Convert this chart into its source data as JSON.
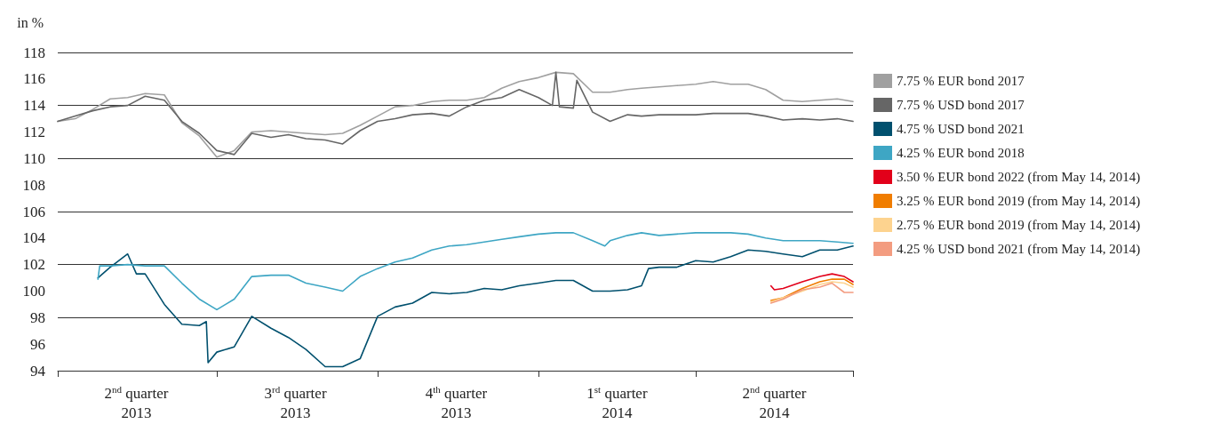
{
  "chart_data": {
    "type": "line",
    "ylabel": "in %",
    "xlim": [
      "2013-04-01",
      "2014-06-30"
    ],
    "xticks": [
      {
        "value": "2013-04-01",
        "label": null
      },
      {
        "value": "2013-05-16",
        "label": "2$^{nd}$ quarter\n2013"
      },
      {
        "value": "2013-07-01",
        "label": null
      },
      {
        "value": "2013-08-15",
        "label": "3$^{rd}$ quarter\n2013"
      },
      {
        "value": "2013-10-01",
        "label": null
      },
      {
        "value": "2013-11-15",
        "label": "4$^{th}$ quarter\n2013"
      },
      {
        "value": "2014-01-01",
        "label": null
      },
      {
        "value": "2014-02-15",
        "label": "1$^{st}$ quarter\n2014"
      },
      {
        "value": "2014-04-01",
        "label": null
      },
      {
        "value": "2014-05-16",
        "label": "2$^{nd}$ quarter\n2014"
      },
      {
        "value": "2014-06-30",
        "label": null
      }
    ],
    "ylim": [
      94,
      118
    ],
    "yticks": [
      94,
      96,
      98,
      100,
      102,
      104,
      106,
      108,
      110,
      112,
      114,
      116,
      118
    ],
    "grid": "y",
    "legend": "right",
    "series": [
      {
        "name": "7.75 % EUR bond 2017",
        "color": "#a0a0a0",
        "x": [
          "2013-04-01",
          "2013-04-11",
          "2013-04-21",
          "2013-05-01",
          "2013-05-11",
          "2013-05-21",
          "2013-06-01",
          "2013-06-11",
          "2013-06-21",
          "2013-07-01",
          "2013-07-11",
          "2013-07-21",
          "2013-08-01",
          "2013-08-11",
          "2013-08-21",
          "2013-09-01",
          "2013-09-11",
          "2013-09-21",
          "2013-10-01",
          "2013-10-11",
          "2013-10-21",
          "2013-11-01",
          "2013-11-11",
          "2013-11-21",
          "2013-12-01",
          "2013-12-11",
          "2013-12-21",
          "2014-01-01",
          "2014-01-11",
          "2014-01-21",
          "2014-02-01",
          "2014-02-11",
          "2014-02-21",
          "2014-03-01",
          "2014-03-11",
          "2014-03-21",
          "2014-04-01",
          "2014-04-11",
          "2014-04-21",
          "2014-05-01",
          "2014-05-11",
          "2014-05-21",
          "2014-06-01",
          "2014-06-11",
          "2014-06-21",
          "2014-06-30"
        ],
        "values": [
          112.8,
          113.0,
          113.7,
          114.5,
          114.6,
          114.9,
          114.8,
          112.7,
          111.7,
          110.1,
          110.6,
          112.0,
          112.1,
          112.0,
          111.9,
          111.8,
          111.9,
          112.5,
          113.2,
          113.9,
          114.0,
          114.3,
          114.4,
          114.4,
          114.6,
          115.3,
          115.8,
          116.1,
          116.5,
          116.4,
          115.0,
          115.0,
          115.2,
          115.3,
          115.4,
          115.5,
          115.6,
          115.8,
          115.6,
          115.6,
          115.2,
          114.4,
          114.3,
          114.4,
          114.5,
          114.3
        ]
      },
      {
        "name": "7.75 % USD bond 2017",
        "color": "#666666",
        "x": [
          "2013-04-01",
          "2013-04-11",
          "2013-04-21",
          "2013-05-01",
          "2013-05-11",
          "2013-05-21",
          "2013-06-01",
          "2013-06-11",
          "2013-06-21",
          "2013-07-01",
          "2013-07-11",
          "2013-07-21",
          "2013-08-01",
          "2013-08-11",
          "2013-08-21",
          "2013-09-01",
          "2013-09-11",
          "2013-09-21",
          "2013-10-01",
          "2013-10-11",
          "2013-10-21",
          "2013-11-01",
          "2013-11-11",
          "2013-11-21",
          "2013-12-01",
          "2013-12-11",
          "2013-12-21",
          "2014-01-01",
          "2014-01-09",
          "2014-01-11",
          "2014-01-13",
          "2014-01-21",
          "2014-01-23",
          "2014-02-01",
          "2014-02-11",
          "2014-02-21",
          "2014-03-01",
          "2014-03-11",
          "2014-03-21",
          "2014-04-01",
          "2014-04-11",
          "2014-04-21",
          "2014-05-01",
          "2014-05-11",
          "2014-05-21",
          "2014-06-01",
          "2014-06-11",
          "2014-06-21",
          "2014-06-30"
        ],
        "values": [
          112.8,
          113.2,
          113.6,
          113.9,
          114.0,
          114.7,
          114.4,
          112.8,
          111.9,
          110.6,
          110.3,
          111.9,
          111.6,
          111.8,
          111.5,
          111.4,
          111.1,
          112.1,
          112.8,
          113.0,
          113.3,
          113.4,
          113.2,
          113.9,
          114.4,
          114.6,
          115.2,
          114.6,
          114.0,
          116.5,
          113.9,
          113.8,
          115.9,
          113.5,
          112.8,
          113.3,
          113.2,
          113.3,
          113.3,
          113.3,
          113.4,
          113.4,
          113.4,
          113.2,
          112.9,
          113.0,
          112.9,
          113.0,
          112.8
        ]
      },
      {
        "name": "4.75 % USD bond 2021",
        "color": "#00506e",
        "x": [
          "2013-04-24",
          "2013-05-01",
          "2013-05-11",
          "2013-05-16",
          "2013-05-21",
          "2013-06-01",
          "2013-06-11",
          "2013-06-21",
          "2013-06-25",
          "2013-06-26",
          "2013-07-01",
          "2013-07-11",
          "2013-07-21",
          "2013-08-01",
          "2013-08-11",
          "2013-08-21",
          "2013-09-01",
          "2013-09-11",
          "2013-09-21",
          "2013-10-01",
          "2013-10-11",
          "2013-10-21",
          "2013-11-01",
          "2013-11-11",
          "2013-11-21",
          "2013-12-01",
          "2013-12-11",
          "2013-12-21",
          "2014-01-01",
          "2014-01-11",
          "2014-01-21",
          "2014-02-01",
          "2014-02-11",
          "2014-02-21",
          "2014-03-01",
          "2014-03-05",
          "2014-03-11",
          "2014-03-21",
          "2014-04-01",
          "2014-04-11",
          "2014-04-21",
          "2014-05-01",
          "2014-05-11",
          "2014-05-21",
          "2014-06-01",
          "2014-06-11",
          "2014-06-21",
          "2014-06-30"
        ],
        "values": [
          101.0,
          101.8,
          102.8,
          101.3,
          101.3,
          99.0,
          97.5,
          97.4,
          97.7,
          94.6,
          95.4,
          95.8,
          98.1,
          97.2,
          96.5,
          95.6,
          94.3,
          94.3,
          94.9,
          98.1,
          98.8,
          99.1,
          99.9,
          99.8,
          99.9,
          100.2,
          100.1,
          100.4,
          100.6,
          100.8,
          100.8,
          100.0,
          100.0,
          100.1,
          100.4,
          101.7,
          101.8,
          101.8,
          102.3,
          102.2,
          102.6,
          103.1,
          103.0,
          102.8,
          102.6,
          103.1,
          103.1,
          103.4
        ]
      },
      {
        "name": "4.25 % EUR bond 2018",
        "color": "#3ea6c4",
        "x": [
          "2013-04-24",
          "2013-04-25",
          "2013-05-01",
          "2013-05-11",
          "2013-05-21",
          "2013-06-01",
          "2013-06-11",
          "2013-06-21",
          "2013-07-01",
          "2013-07-11",
          "2013-07-21",
          "2013-08-01",
          "2013-08-11",
          "2013-08-21",
          "2013-09-01",
          "2013-09-11",
          "2013-09-21",
          "2013-10-01",
          "2013-10-11",
          "2013-10-21",
          "2013-11-01",
          "2013-11-11",
          "2013-11-21",
          "2013-12-01",
          "2013-12-11",
          "2013-12-21",
          "2014-01-01",
          "2014-01-11",
          "2014-01-21",
          "2014-02-01",
          "2014-02-08",
          "2014-02-11",
          "2014-02-21",
          "2014-03-01",
          "2014-03-11",
          "2014-03-21",
          "2014-04-01",
          "2014-04-11",
          "2014-04-21",
          "2014-05-01",
          "2014-05-11",
          "2014-05-21",
          "2014-06-01",
          "2014-06-11",
          "2014-06-21",
          "2014-06-30"
        ],
        "values": [
          100.9,
          101.9,
          101.9,
          102.0,
          101.9,
          101.9,
          100.6,
          99.4,
          98.6,
          99.4,
          101.1,
          101.2,
          101.2,
          100.6,
          100.3,
          100.0,
          101.1,
          101.7,
          102.2,
          102.5,
          103.1,
          103.4,
          103.5,
          103.7,
          103.9,
          104.1,
          104.3,
          104.4,
          104.4,
          103.8,
          103.4,
          103.8,
          104.2,
          104.4,
          104.2,
          104.3,
          104.4,
          104.4,
          104.4,
          104.3,
          104.0,
          103.8,
          103.8,
          103.8,
          103.7,
          103.6
        ]
      },
      {
        "name": "3.50 % EUR bond 2022 (from May 14, 2014)",
        "color": "#e2001a",
        "x": [
          "2014-05-14",
          "2014-05-16",
          "2014-05-21",
          "2014-06-01",
          "2014-06-11",
          "2014-06-18",
          "2014-06-25",
          "2014-06-30"
        ],
        "values": [
          100.4,
          100.1,
          100.2,
          100.7,
          101.1,
          101.3,
          101.1,
          100.7
        ]
      },
      {
        "name": "3.25 % EUR bond 2019 (from May 14, 2014)",
        "color": "#f07d00",
        "x": [
          "2014-05-14",
          "2014-05-21",
          "2014-06-01",
          "2014-06-11",
          "2014-06-18",
          "2014-06-25",
          "2014-06-30"
        ],
        "values": [
          99.3,
          99.5,
          100.2,
          100.7,
          100.9,
          100.9,
          100.5
        ]
      },
      {
        "name": "2.75 % EUR bond 2019 (from May 14, 2014)",
        "color": "#fdd38f",
        "x": [
          "2014-05-14",
          "2014-05-21",
          "2014-06-01",
          "2014-06-11",
          "2014-06-18",
          "2014-06-25",
          "2014-06-30"
        ],
        "values": [
          99.2,
          99.5,
          100.0,
          100.5,
          100.7,
          100.6,
          100.3
        ]
      },
      {
        "name": "4.25 % USD bond 2021 (from May 14, 2014)",
        "color": "#f39c80",
        "x": [
          "2014-05-14",
          "2014-05-21",
          "2014-06-01",
          "2014-06-11",
          "2014-06-18",
          "2014-06-25",
          "2014-06-30"
        ],
        "values": [
          99.1,
          99.4,
          100.1,
          100.3,
          100.6,
          99.9,
          99.9
        ]
      }
    ]
  }
}
